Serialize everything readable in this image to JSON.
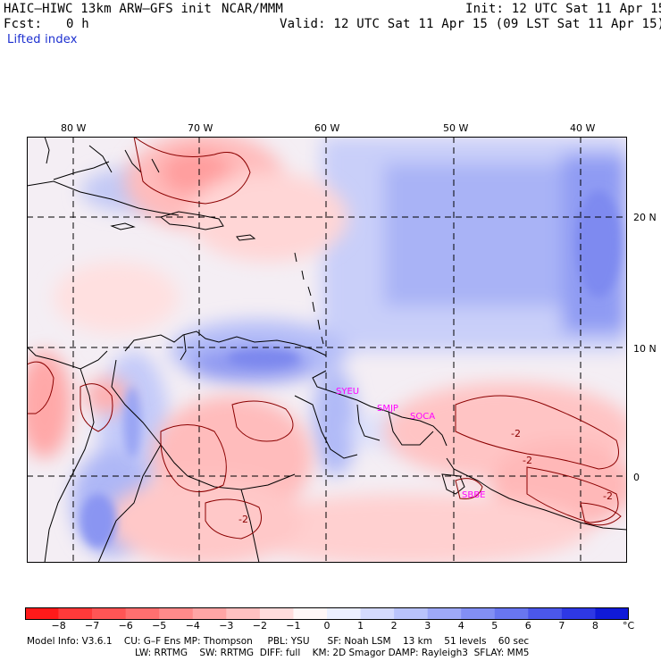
{
  "header": {
    "model_title": "HAIC–HIWC 13km ARW–GFS init",
    "center": "NCAR/MMM",
    "init": "Init: 12 UTC Sat 11 Apr 15",
    "fcst_label": "Fcst:",
    "fcst_value": "0 h",
    "valid": "Valid: 12 UTC Sat 11 Apr 15 (09 LST Sat 11 Apr 15)",
    "field": "Lifted index"
  },
  "axes": {
    "lon_labels": [
      "80 W",
      "70 W",
      "60 W",
      "50 W",
      "40 W"
    ],
    "lat_labels": [
      "20 N",
      "10 N",
      "0"
    ]
  },
  "stations": [
    "SYEU",
    "SMJP",
    "SOCA",
    "SBBE"
  ],
  "contour_labels": [
    "-2",
    "-2",
    "-2",
    "-2"
  ],
  "colorbar": {
    "ticks": [
      "−8",
      "−7",
      "−6",
      "−5",
      "−4",
      "−3",
      "−2",
      "−1",
      "0",
      "1",
      "2",
      "3",
      "4",
      "5",
      "6",
      "7",
      "8"
    ],
    "unit": "°C",
    "colors": [
      "#ff1a1a",
      "#ff3a3a",
      "#ff5555",
      "#ff6f6f",
      "#ff8a8a",
      "#ffa5a5",
      "#ffc0c0",
      "#ffdcdc",
      "#fff6f6",
      "#ecefff",
      "#d4dafd",
      "#b9c3fb",
      "#9ea9f8",
      "#828ff4",
      "#6876f0",
      "#4b57ea",
      "#2e38e4",
      "#101ad8"
    ]
  },
  "footer": {
    "line1": "Model Info: V3.6.1    CU: G–F Ens MP: Thompson     PBL: YSU      SF: Noah LSM    13 km    51 levels    60 sec",
    "line2": "LW: RRTMG    SW: RRTMG  DIFF: full    KM: 2D Smagor DAMP: Rayleigh3  SFLAY: MM5"
  }
}
